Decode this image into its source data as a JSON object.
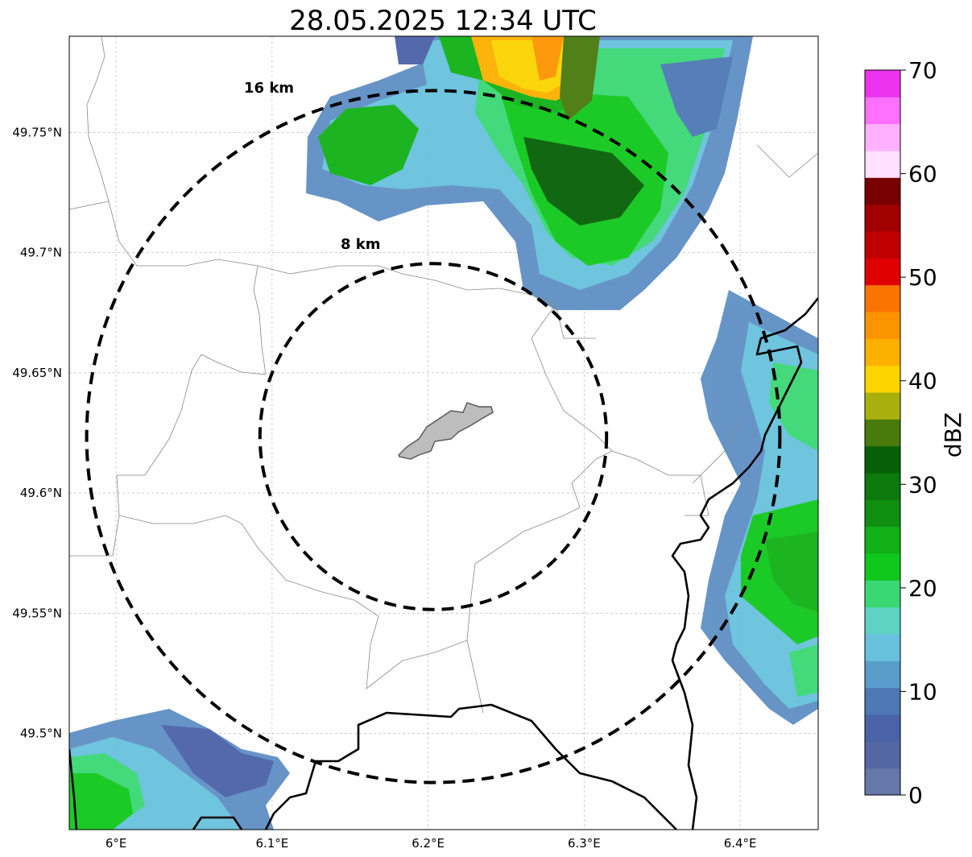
{
  "title": "28.05.2025 12:34 UTC",
  "map": {
    "lon_range": [
      5.97,
      6.45
    ],
    "lat_range": [
      49.46,
      49.79
    ],
    "x_ticks": [
      {
        "lon": 6.0,
        "label": "6°E"
      },
      {
        "lon": 6.1,
        "label": "6.1°E"
      },
      {
        "lon": 6.2,
        "label": "6.2°E"
      },
      {
        "lon": 6.3,
        "label": "6.3°E"
      },
      {
        "lon": 6.4,
        "label": "6.4°E"
      }
    ],
    "y_ticks": [
      {
        "lat": 49.5,
        "label": "49.5°N"
      },
      {
        "lat": 49.55,
        "label": "49.55°N"
      },
      {
        "lat": 49.6,
        "label": "49.6°N"
      },
      {
        "lat": 49.65,
        "label": "49.65°N"
      },
      {
        "lat": 49.7,
        "label": "49.7°N"
      },
      {
        "lat": 49.75,
        "label": "49.75°N"
      }
    ],
    "range_rings": [
      {
        "label": "8 km",
        "radius_km": 8
      },
      {
        "label": "16 km",
        "radius_km": 16
      }
    ],
    "gridlines": true
  },
  "colorbar": {
    "label": "dBZ",
    "ticks": [
      "0",
      "10",
      "20",
      "30",
      "40",
      "50",
      "60",
      "70"
    ],
    "colors": [
      "#6677aa",
      "#5566a4",
      "#4a62a8",
      "#4d78b4",
      "#589dca",
      "#68c1dd",
      "#5fd3c3",
      "#3ad874",
      "#10c81c",
      "#10b016",
      "#108e10",
      "#0c7a0c",
      "#066006",
      "#487a0c",
      "#a8b00e",
      "#fcd400",
      "#fcb000",
      "#fc9400",
      "#fc7400",
      "#e00000",
      "#c00000",
      "#a00000",
      "#780000",
      "#ffe0ff",
      "#ffb0ff",
      "#ff70ff",
      "#ee33ee"
    ]
  }
}
